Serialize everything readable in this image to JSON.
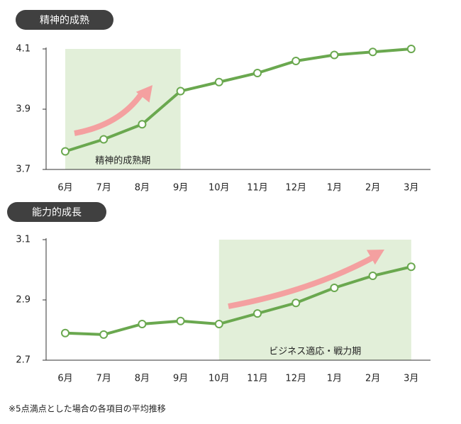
{
  "chart_data": [
    {
      "type": "line",
      "title": "精神的成熟",
      "categories": [
        "6月",
        "7月",
        "8月",
        "9月",
        "10月",
        "11月",
        "12月",
        "1月",
        "2月",
        "3月"
      ],
      "values": [
        3.76,
        3.8,
        3.85,
        3.96,
        3.99,
        4.02,
        4.06,
        4.08,
        4.09,
        4.1
      ],
      "color": "#6aa84f",
      "ylim": [
        3.7,
        4.1
      ],
      "yticks": [
        3.7,
        3.9,
        4.1
      ],
      "highlight": {
        "label": "精神的成熟期",
        "from": "6月",
        "to": "9月",
        "color": "#e2efd9"
      }
    },
    {
      "type": "line",
      "title": "能力的成長",
      "categories": [
        "6月",
        "7月",
        "8月",
        "9月",
        "10月",
        "11月",
        "12月",
        "1月",
        "2月",
        "3月"
      ],
      "values": [
        2.79,
        2.785,
        2.82,
        2.83,
        2.82,
        2.855,
        2.89,
        2.94,
        2.98,
        3.01
      ],
      "color": "#6aa84f",
      "ylim": [
        2.7,
        3.1
      ],
      "yticks": [
        2.7,
        2.9,
        3.1
      ],
      "highlight": {
        "label": "ビジネス適応・戦力期",
        "from": "10月",
        "to": "3月",
        "color": "#e2efd9"
      }
    }
  ],
  "note": "※5点満点とした場合の各項目の平均推移"
}
